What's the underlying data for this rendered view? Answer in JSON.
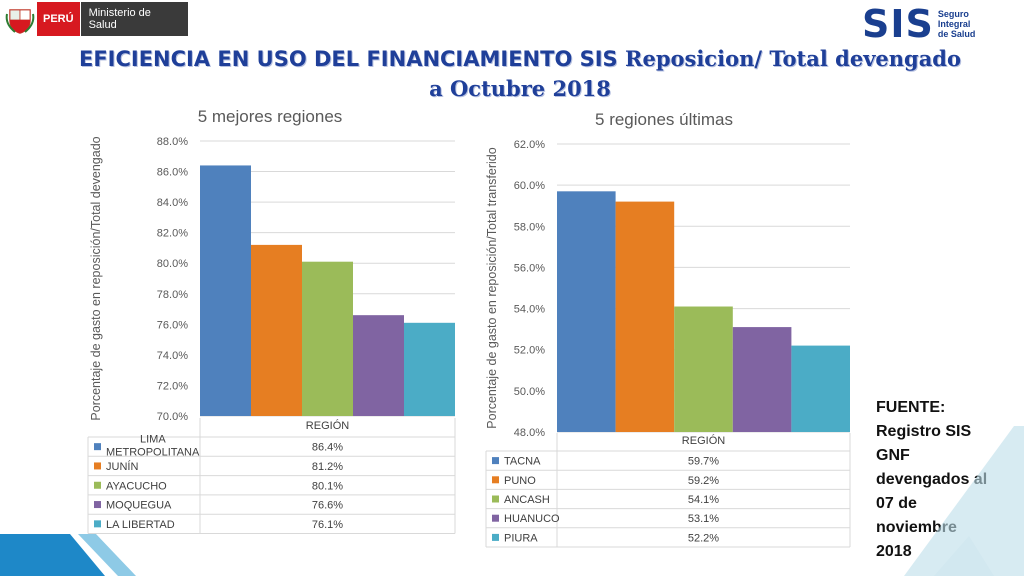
{
  "header": {
    "peru_label": "PERÚ",
    "ministry_label": "Ministerio de Salud",
    "sis_logo": "SIS",
    "sis_subtitle": [
      "Seguro",
      "Integral",
      "de Salud"
    ]
  },
  "title": {
    "part1": "EFICIENCIA EN USO DEL FINANCIAMIENTO SIS",
    "part2": "Reposicion/ Total devengado",
    "part3": "a Octubre 2018"
  },
  "source_note": [
    "FUENTE:",
    "Registro SIS",
    "GNF",
    "devengados al",
    "07 de",
    "noviembre",
    "2018"
  ],
  "colors": {
    "blue": "#4f81bd",
    "orange": "#e67e22",
    "green": "#9bbb59",
    "purple": "#8064a2",
    "teal": "#4bacc6",
    "title_blue": "#1f3f99"
  },
  "chart_data": [
    {
      "type": "bar",
      "title": "5 mejores regiones",
      "ylabel": "Porcentaje de gasto en reposición/Total devengado",
      "xlabel": "REGIÓN",
      "ylim": [
        70.0,
        88.0
      ],
      "yticks": [
        "70.0%",
        "72.0%",
        "74.0%",
        "76.0%",
        "78.0%",
        "80.0%",
        "82.0%",
        "84.0%",
        "86.0%",
        "88.0%"
      ],
      "series": [
        {
          "name": "LIMA METROPOLITANA",
          "value": 86.4,
          "label": "86.4%",
          "color": "#4f81bd"
        },
        {
          "name": "JUNÍN",
          "value": 81.2,
          "label": "81.2%",
          "color": "#e67e22"
        },
        {
          "name": "AYACUCHO",
          "value": 80.1,
          "label": "80.1%",
          "color": "#9bbb59"
        },
        {
          "name": "MOQUEGUA",
          "value": 76.6,
          "label": "76.6%",
          "color": "#8064a2"
        },
        {
          "name": "LA LIBERTAD",
          "value": 76.1,
          "label": "76.1%",
          "color": "#4bacc6"
        }
      ],
      "grid": true,
      "legend": "data table below"
    },
    {
      "type": "bar",
      "title": "5 regiones últimas",
      "ylabel": "Porcentaje de gasto en reposición/Total transferido",
      "xlabel": "REGIÓN",
      "ylim": [
        48.0,
        62.0
      ],
      "yticks": [
        "48.0%",
        "50.0%",
        "52.0%",
        "54.0%",
        "56.0%",
        "58.0%",
        "60.0%",
        "62.0%"
      ],
      "series": [
        {
          "name": "TACNA",
          "value": 59.7,
          "label": "59.7%",
          "color": "#4f81bd"
        },
        {
          "name": "PUNO",
          "value": 59.2,
          "label": "59.2%",
          "color": "#e67e22"
        },
        {
          "name": "ANCASH",
          "value": 54.1,
          "label": "54.1%",
          "color": "#9bbb59"
        },
        {
          "name": "HUANUCO",
          "value": 53.1,
          "label": "53.1%",
          "color": "#8064a2"
        },
        {
          "name": "PIURA",
          "value": 52.2,
          "label": "52.2%",
          "color": "#4bacc6"
        }
      ],
      "grid": true,
      "legend": "data table below"
    }
  ]
}
